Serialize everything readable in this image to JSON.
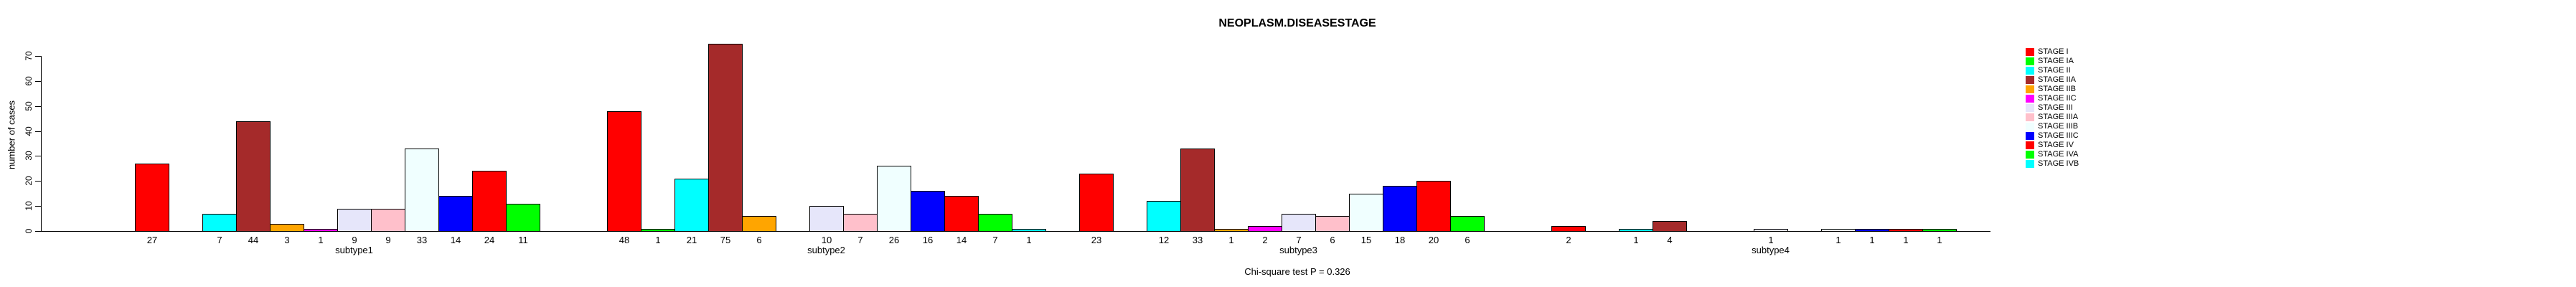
{
  "title": "NEOPLASM.DISEASESTAGE",
  "footnote": "Chi-square test P = 0.326",
  "chart_data": {
    "type": "bar",
    "title": "NEOPLASM.DISEASESTAGE",
    "xlabel": "",
    "ylabel": "number of cases",
    "categories": [
      "subtype1",
      "subtype2",
      "subtype3",
      "subtype4"
    ],
    "ylim": [
      0,
      70
    ],
    "yticks": [
      0,
      10,
      20,
      30,
      40,
      50,
      60,
      70
    ],
    "grid": false,
    "legend_position": "right-outside",
    "bar_value_labels_shown": true,
    "zero_bars_hidden": true,
    "series": [
      {
        "name": "STAGE I",
        "color": "#FF0000",
        "values": [
          27,
          48,
          23,
          2
        ]
      },
      {
        "name": "STAGE IA",
        "color": "#00FF00",
        "values": [
          0,
          1,
          0,
          0
        ]
      },
      {
        "name": "STAGE II",
        "color": "#00FFFF",
        "values": [
          7,
          21,
          12,
          1
        ]
      },
      {
        "name": "STAGE IIA",
        "color": "#A52A2A",
        "values": [
          44,
          75,
          33,
          4
        ]
      },
      {
        "name": "STAGE IIB",
        "color": "#FFA500",
        "values": [
          3,
          6,
          1,
          0
        ]
      },
      {
        "name": "STAGE IIC",
        "color": "#FF00FF",
        "values": [
          1,
          0,
          2,
          0
        ]
      },
      {
        "name": "STAGE III",
        "color": "#E6E6FA",
        "values": [
          9,
          10,
          7,
          1
        ]
      },
      {
        "name": "STAGE IIIA",
        "color": "#FFC0CB",
        "values": [
          9,
          7,
          6,
          0
        ]
      },
      {
        "name": "STAGE IIIB",
        "color": "#F0FFFF",
        "values": [
          33,
          26,
          15,
          1
        ]
      },
      {
        "name": "STAGE IIIC",
        "color": "#0000FF",
        "values": [
          14,
          16,
          18,
          1
        ]
      },
      {
        "name": "STAGE IV",
        "color": "#FF0000",
        "values": [
          24,
          14,
          20,
          1
        ]
      },
      {
        "name": "STAGE IVA",
        "color": "#00FF00",
        "values": [
          11,
          7,
          6,
          1
        ]
      },
      {
        "name": "STAGE IVB",
        "color": "#00FFFF",
        "values": [
          0,
          1,
          0,
          0
        ]
      }
    ]
  }
}
